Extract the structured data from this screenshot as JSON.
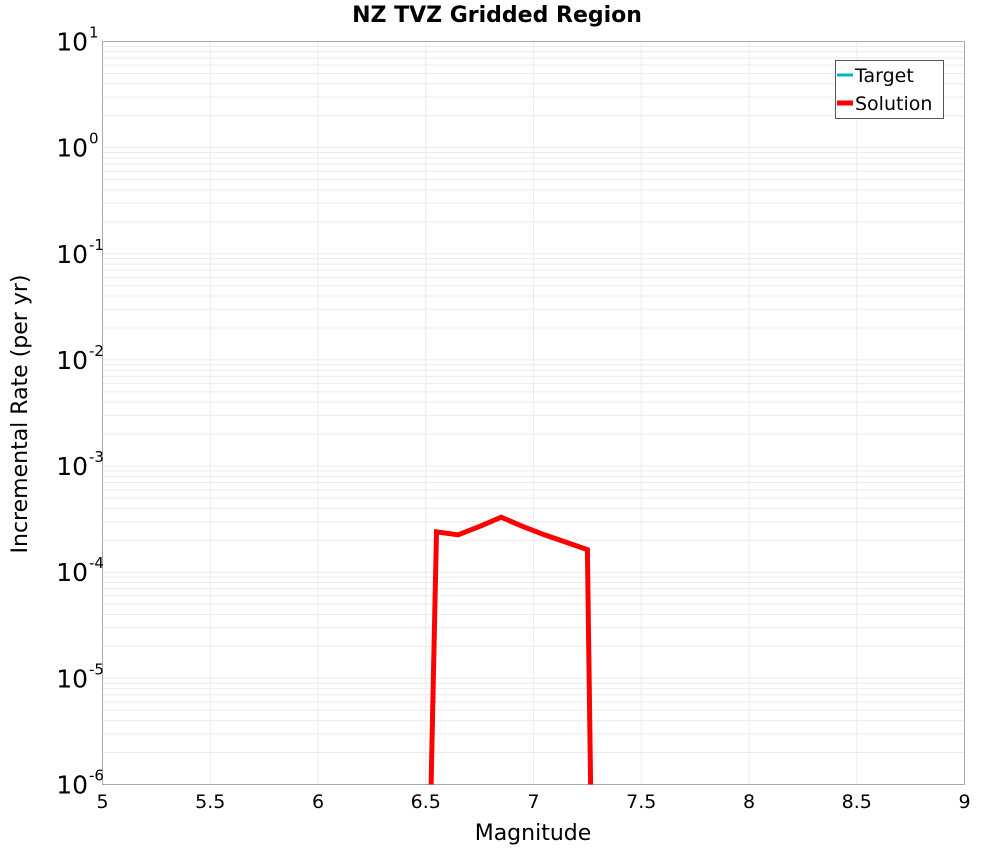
{
  "chart_data": {
    "type": "line",
    "title": "NZ TVZ Gridded Region",
    "xlabel": "Magnitude",
    "ylabel": "Incremental Rate (per yr)",
    "xlim": [
      5,
      9
    ],
    "ylim": [
      1e-06,
      10
    ],
    "yscale": "log",
    "grid": true,
    "x_ticks": [
      "5",
      "5.5",
      "6",
      "6.5",
      "7",
      "7.5",
      "8",
      "8.5",
      "9"
    ],
    "y_ticks": [
      {
        "base": "10",
        "exp": "1"
      },
      {
        "base": "10",
        "exp": "0"
      },
      {
        "base": "10",
        "exp": "-1"
      },
      {
        "base": "10",
        "exp": "-2"
      },
      {
        "base": "10",
        "exp": "-3"
      },
      {
        "base": "10",
        "exp": "-4"
      },
      {
        "base": "10",
        "exp": "-5"
      },
      {
        "base": "10",
        "exp": "-6"
      }
    ],
    "legend": {
      "position": "upper-right",
      "entries": [
        {
          "label": "Target",
          "color": "#00b4c0"
        },
        {
          "label": "Solution",
          "color": "#ff0000"
        }
      ]
    },
    "series": [
      {
        "name": "Target",
        "color": "#00b4c0",
        "x": [],
        "y": []
      },
      {
        "name": "Solution",
        "color": "#ff0000",
        "x": [
          6.525,
          6.55,
          6.65,
          6.75,
          6.85,
          6.95,
          7.05,
          7.15,
          7.25,
          7.265
        ],
        "y": [
          1e-06,
          0.00024,
          0.000225,
          0.00027,
          0.00033,
          0.00027,
          0.000225,
          0.000192,
          0.000163,
          1e-06
        ]
      }
    ]
  }
}
